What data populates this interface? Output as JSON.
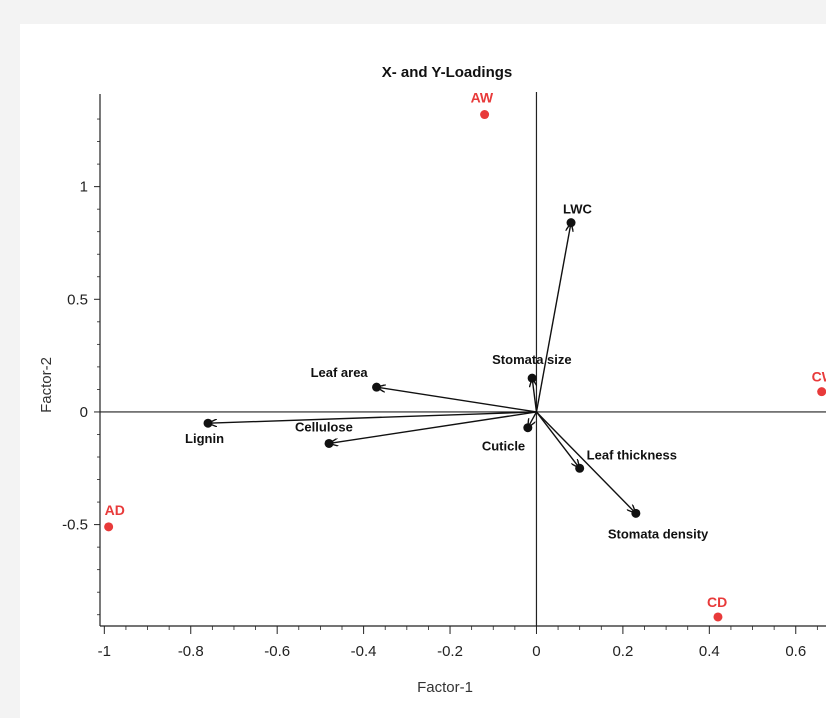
{
  "chart_data": {
    "type": "scatter",
    "title": "X- and Y-Loadings",
    "xlabel": "Factor-1",
    "ylabel": "Factor-2",
    "xlim": [
      -1.01,
      0.67
    ],
    "ylim": [
      -0.95,
      1.42
    ],
    "x_ticks": [
      "-1",
      "-0.8",
      "-0.6",
      "-0.4",
      "-0.2",
      "0",
      "0.2",
      "0.4",
      "0.6"
    ],
    "y_ticks": [
      "-0.5",
      "0",
      "0.5",
      "1"
    ],
    "grid": false,
    "variable_color": "#111111",
    "observation_color": "#e83a3a",
    "variables": [
      {
        "name": "LWC",
        "x": 0.08,
        "y": 0.84,
        "arrow": true
      },
      {
        "name": "Stomata size",
        "x": -0.01,
        "y": 0.15,
        "arrow": true
      },
      {
        "name": "Leaf area",
        "x": -0.37,
        "y": 0.11,
        "arrow": true
      },
      {
        "name": "Lignin",
        "x": -0.76,
        "y": -0.05,
        "arrow": true
      },
      {
        "name": "Cellulose",
        "x": -0.48,
        "y": -0.14,
        "arrow": true
      },
      {
        "name": "Cuticle",
        "x": -0.02,
        "y": -0.07,
        "arrow": true
      },
      {
        "name": "Leaf thickness",
        "x": 0.1,
        "y": -0.25,
        "arrow": true
      },
      {
        "name": "Stomata density",
        "x": 0.23,
        "y": -0.45,
        "arrow": true
      }
    ],
    "observations": [
      {
        "name": "AW",
        "x": -0.12,
        "y": 1.32
      },
      {
        "name": "CW",
        "x": 0.66,
        "y": 0.09
      },
      {
        "name": "AD",
        "x": -0.99,
        "y": -0.51
      },
      {
        "name": "CD",
        "x": 0.42,
        "y": -0.91
      }
    ]
  }
}
